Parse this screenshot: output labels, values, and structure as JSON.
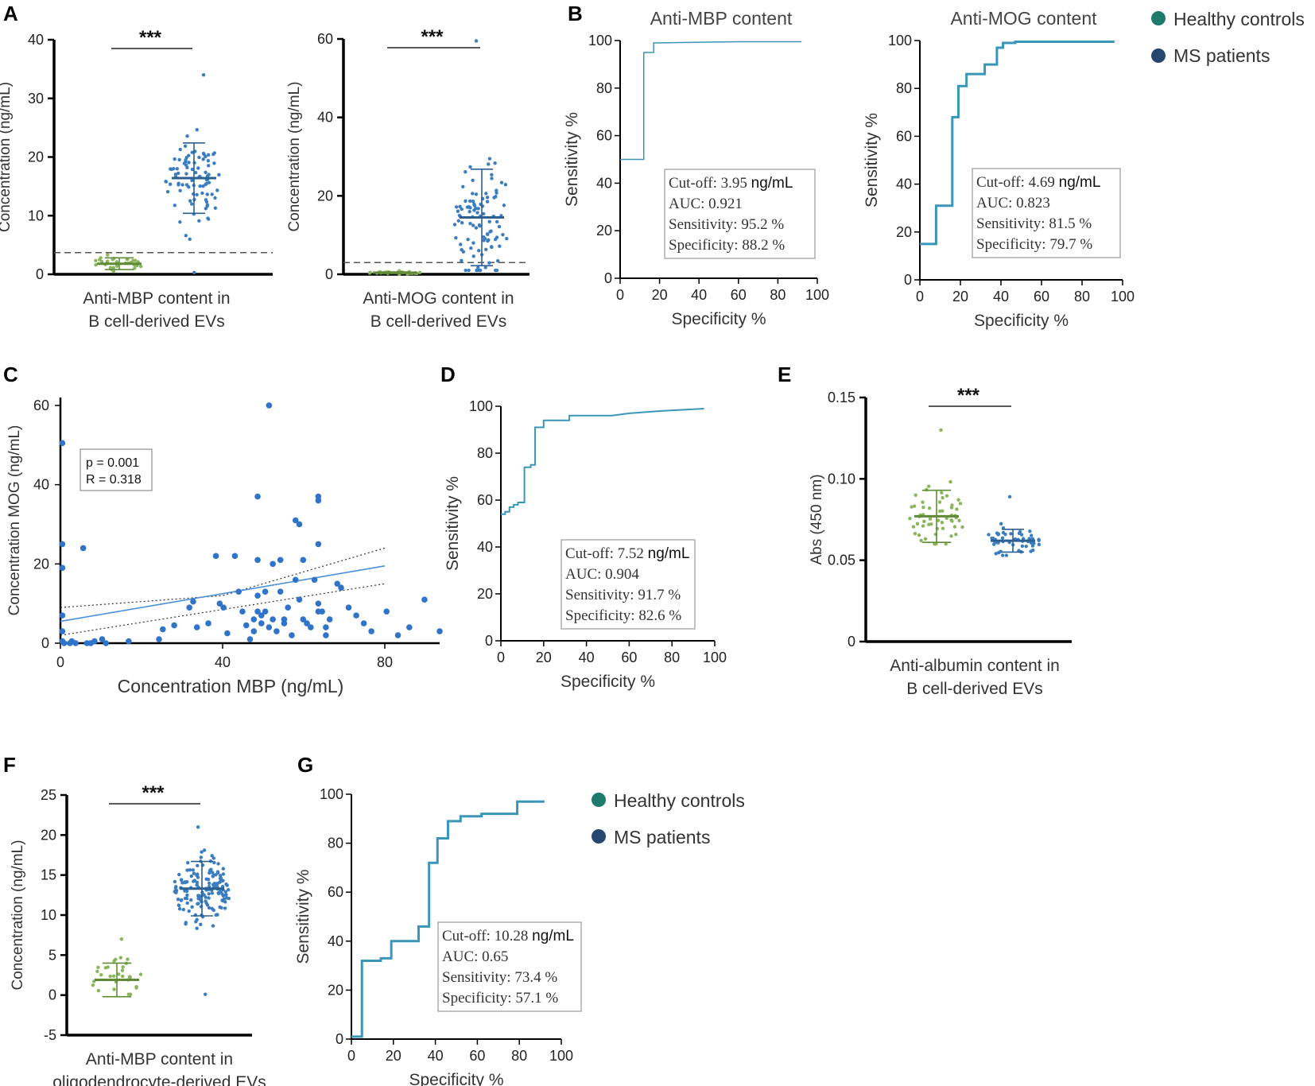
{
  "colors": {
    "healthy": "#8ab55a",
    "healthy_dark": "#5e8a35",
    "ms": "#3a7dc0",
    "ms_dark": "#2b5f92",
    "roc": "#3a96b8",
    "scatter": "#2f74c9",
    "legend_healthy": "#1e7a6a",
    "legend_ms": "#25476e",
    "axis": "#000000"
  },
  "panel_letters": [
    "A",
    "B",
    "C",
    "D",
    "E",
    "F",
    "G"
  ],
  "legend_top": {
    "items": [
      {
        "label": "Healthy controls",
        "color_key": "legend_healthy"
      },
      {
        "label": "MS patients",
        "color_key": "legend_ms"
      }
    ]
  },
  "legend_bottom": {
    "items": [
      {
        "label": "Healthy controls",
        "color_key": "legend_healthy"
      },
      {
        "label": "MS patients",
        "color_key": "legend_ms"
      }
    ]
  },
  "chart_data": [
    {
      "id": "A1",
      "type": "scatter",
      "title": "",
      "ylabel": "Concentration (ng/mL)",
      "xlabel_lines": [
        "Anti-MBP content in",
        "B cell-derived EVs"
      ],
      "yticks": [
        0,
        10,
        20,
        30,
        40
      ],
      "ylim": [
        0,
        40
      ],
      "significance": "***",
      "cutoff_line": 3.7,
      "groups": [
        {
          "name": "Healthy controls",
          "mean": 1.8,
          "sd": 1.0,
          "n": 30,
          "min": 0.5,
          "max": 3.3
        },
        {
          "name": "MS patients",
          "mean": 16.4,
          "sd": 6.0,
          "n": 90,
          "min": 0.3,
          "max": 34
        }
      ]
    },
    {
      "id": "A2",
      "type": "scatter",
      "ylabel": "Concentration (ng/mL)",
      "xlabel_lines": [
        "Anti-MOG content in",
        "B cell-derived EVs"
      ],
      "yticks": [
        0,
        20,
        40,
        60
      ],
      "ylim": [
        0,
        60
      ],
      "significance": "***",
      "cutoff_line": 3.0,
      "groups": [
        {
          "name": "Healthy controls",
          "mean": 0.4,
          "sd": 0.2,
          "n": 30,
          "min": 0.0,
          "max": 0.9
        },
        {
          "name": "MS patients",
          "mean": 14.5,
          "sd": 12.3,
          "n": 100,
          "min": 1.0,
          "max": 59.5
        }
      ]
    },
    {
      "id": "B1",
      "type": "line",
      "title": "Anti-MBP content",
      "xlabel": "Specificity %",
      "ylabel": "Sensitivity %",
      "xticks": [
        0,
        20,
        40,
        60,
        80,
        100
      ],
      "yticks": [
        0,
        20,
        40,
        60,
        80,
        100
      ],
      "xlim": [
        0,
        100
      ],
      "ylim": [
        0,
        100
      ],
      "x": [
        0,
        12,
        12,
        17,
        17,
        60,
        92
      ],
      "y": [
        50,
        50,
        95,
        95,
        99,
        99.5,
        99.5
      ],
      "stroke": 1.5,
      "stats": {
        "cutoff_label": "Cut-off: 3.95",
        "cutoff_unit": "ng/mL",
        "auc": "AUC: 0.921",
        "sens": "Sensitivity: 95.2 %",
        "spec": "Specificity: 88.2 %"
      }
    },
    {
      "id": "B2",
      "type": "line",
      "title": "Anti-MOG content",
      "xlabel": "Specificity %",
      "ylabel": "Sensitivity %",
      "xticks": [
        0,
        20,
        40,
        60,
        80,
        100
      ],
      "yticks": [
        0,
        20,
        40,
        60,
        80,
        100
      ],
      "xlim": [
        0,
        100
      ],
      "ylim": [
        0,
        100
      ],
      "x": [
        0,
        8,
        8,
        16,
        16,
        19,
        19,
        23,
        23,
        32,
        32,
        38,
        38,
        41,
        41,
        47,
        47,
        96
      ],
      "y": [
        15,
        15,
        31,
        31,
        68,
        68,
        81,
        81,
        86,
        86,
        90,
        90,
        97,
        97,
        99,
        99,
        99.5,
        99.5
      ],
      "stroke": 3,
      "stats": {
        "cutoff_label": "Cut-off: 4.69",
        "cutoff_unit": "ng/mL",
        "auc": "AUC: 0.823",
        "sens": "Sensitivity: 81.5 %",
        "spec": "Specificity: 79.7 %"
      }
    },
    {
      "id": "C",
      "type": "scatter",
      "xlabel": "Concentration MBP (ng/mL)",
      "ylabel": "Concentration MOG (ng/mL)",
      "xticks": [
        0,
        40,
        80
      ],
      "yticks": [
        0,
        20,
        40,
        60
      ],
      "xlim": [
        0,
        100
      ],
      "ylim": [
        0,
        62
      ],
      "annotation": [
        "p = 0.001",
        "R = 0.318"
      ],
      "fit": {
        "x": [
          0,
          80
        ],
        "y": [
          5.5,
          19.5
        ]
      },
      "ci_upper": {
        "x": [
          0,
          40,
          80
        ],
        "y": [
          9,
          12,
          24
        ]
      },
      "ci_lower": {
        "x": [
          0,
          40,
          80
        ],
        "y": [
          2,
          8.5,
          15
        ]
      },
      "points": [
        [
          0.5,
          50.5
        ],
        [
          0.5,
          25
        ],
        [
          0.5,
          19
        ],
        [
          0.5,
          7
        ],
        [
          0.5,
          3
        ],
        [
          0.5,
          0.5
        ],
        [
          1,
          0
        ],
        [
          2.5,
          0
        ],
        [
          3,
          0.5
        ],
        [
          4,
          0
        ],
        [
          7,
          0
        ],
        [
          8,
          0
        ],
        [
          9,
          0.5
        ],
        [
          6,
          24
        ],
        [
          11,
          1
        ],
        [
          12,
          0
        ],
        [
          18,
          0.5
        ],
        [
          26,
          1
        ],
        [
          27,
          3.5
        ],
        [
          30,
          4.5
        ],
        [
          34,
          9
        ],
        [
          35,
          10.5
        ],
        [
          36,
          4
        ],
        [
          39,
          5
        ],
        [
          41,
          22
        ],
        [
          42,
          10
        ],
        [
          43,
          9
        ],
        [
          44,
          2.5
        ],
        [
          46,
          22
        ],
        [
          47,
          13
        ],
        [
          48,
          8
        ],
        [
          49,
          4.5
        ],
        [
          50,
          1
        ],
        [
          51,
          3
        ],
        [
          51,
          6
        ],
        [
          52,
          37
        ],
        [
          52,
          21
        ],
        [
          52,
          12
        ],
        [
          52,
          8
        ],
        [
          53,
          7
        ],
        [
          53,
          5
        ],
        [
          54,
          13
        ],
        [
          54,
          8
        ],
        [
          55,
          60
        ],
        [
          55,
          4
        ],
        [
          56,
          20
        ],
        [
          56,
          6
        ],
        [
          57,
          3
        ],
        [
          58,
          21
        ],
        [
          58,
          13
        ],
        [
          59,
          6
        ],
        [
          59,
          5
        ],
        [
          60,
          9
        ],
        [
          61,
          2
        ],
        [
          62,
          31
        ],
        [
          62,
          16
        ],
        [
          63,
          30
        ],
        [
          63,
          11
        ],
        [
          64,
          21
        ],
        [
          64,
          6
        ],
        [
          65,
          5
        ],
        [
          66,
          4
        ],
        [
          67,
          16
        ],
        [
          68,
          37
        ],
        [
          68,
          36
        ],
        [
          68,
          25
        ],
        [
          68,
          10
        ],
        [
          68,
          8
        ],
        [
          69,
          8
        ],
        [
          70,
          4
        ],
        [
          70,
          2
        ],
        [
          71,
          6
        ],
        [
          73,
          15
        ],
        [
          74,
          14
        ],
        [
          76,
          9
        ],
        [
          78,
          7
        ],
        [
          80,
          5
        ],
        [
          82,
          3
        ],
        [
          86,
          8
        ],
        [
          89,
          2
        ],
        [
          92,
          4
        ],
        [
          96,
          11
        ],
        [
          100,
          3
        ]
      ]
    },
    {
      "id": "D",
      "type": "line",
      "xlabel": "Specificity %",
      "ylabel": "Sensitivity %",
      "xticks": [
        0,
        20,
        40,
        60,
        80,
        100
      ],
      "yticks": [
        0,
        20,
        40,
        60,
        80,
        100
      ],
      "xlim": [
        0,
        100
      ],
      "ylim": [
        0,
        100
      ],
      "x": [
        0,
        2,
        2,
        4,
        4,
        6,
        6,
        8,
        8,
        11,
        11,
        14,
        14,
        16,
        16,
        20,
        20,
        32,
        32,
        52,
        60,
        75,
        95
      ],
      "y": [
        54,
        54,
        55,
        55,
        57,
        57,
        58,
        58,
        59,
        59,
        74,
        74,
        75,
        75,
        91,
        91,
        94,
        94,
        96,
        96,
        97,
        98,
        99
      ],
      "stroke": 2,
      "stats": {
        "cutoff_label": "Cut-off: 7.52",
        "cutoff_unit": "ng/mL",
        "auc": "AUC: 0.904",
        "sens": "Sensitivity: 91.7 %",
        "spec": "Specificity: 82.6 %"
      }
    },
    {
      "id": "E",
      "type": "scatter",
      "ylabel": "Abs (450 nm)",
      "xlabel_lines": [
        "Anti-albumin content in",
        "B cell-derived EVs"
      ],
      "yticks": [
        0,
        0.05,
        0.1,
        0.15
      ],
      "ytick_labels": [
        "0",
        "0.05",
        "0.10",
        "0.15"
      ],
      "ylim": [
        0,
        0.15
      ],
      "significance": "***",
      "groups": [
        {
          "name": "Healthy controls",
          "mean": 0.077,
          "sd": 0.016,
          "n": 55,
          "min": 0.06,
          "max": 0.13
        },
        {
          "name": "MS patients",
          "mean": 0.062,
          "sd": 0.007,
          "n": 55,
          "min": 0.053,
          "max": 0.089
        }
      ]
    },
    {
      "id": "F",
      "type": "scatter",
      "ylabel": "Concentration (ng/mL)",
      "xlabel_lines": [
        "Anti-MBP content in",
        "oligodendrocyte-derived EVs"
      ],
      "yticks": [
        -5,
        0,
        5,
        10,
        15,
        20,
        25
      ],
      "ylim": [
        -5,
        25
      ],
      "significance": "***",
      "groups": [
        {
          "name": "Healthy controls",
          "mean": 1.9,
          "sd": 2.1,
          "n": 30,
          "min": 0.1,
          "max": 7.0
        },
        {
          "name": "MS patients",
          "mean": 13.3,
          "sd": 3.4,
          "n": 150,
          "min": 0.1,
          "max": 21
        }
      ]
    },
    {
      "id": "G",
      "type": "line",
      "xlabel": "Specificity %",
      "ylabel": "Sensitivity %",
      "xticks": [
        0,
        20,
        40,
        60,
        80,
        100
      ],
      "yticks": [
        0,
        20,
        40,
        60,
        80,
        100
      ],
      "xlim": [
        0,
        100
      ],
      "ylim": [
        0,
        100
      ],
      "x": [
        0,
        5,
        5,
        14,
        14,
        19,
        19,
        32,
        32,
        37,
        37,
        41,
        41,
        46,
        46,
        52,
        52,
        62,
        62,
        79,
        79,
        92
      ],
      "y": [
        1,
        1,
        32,
        32,
        33,
        33,
        40,
        40,
        46,
        46,
        72,
        72,
        82,
        82,
        89,
        89,
        91,
        91,
        92,
        92,
        97,
        97
      ],
      "stroke": 3,
      "stats": {
        "cutoff_label": "Cut-off: 10.28",
        "cutoff_unit": "ng/mL",
        "auc": "AUC: 0.65",
        "sens": "Sensitivity: 73.4 %",
        "spec": "Specificity: 57.1 %"
      }
    }
  ]
}
